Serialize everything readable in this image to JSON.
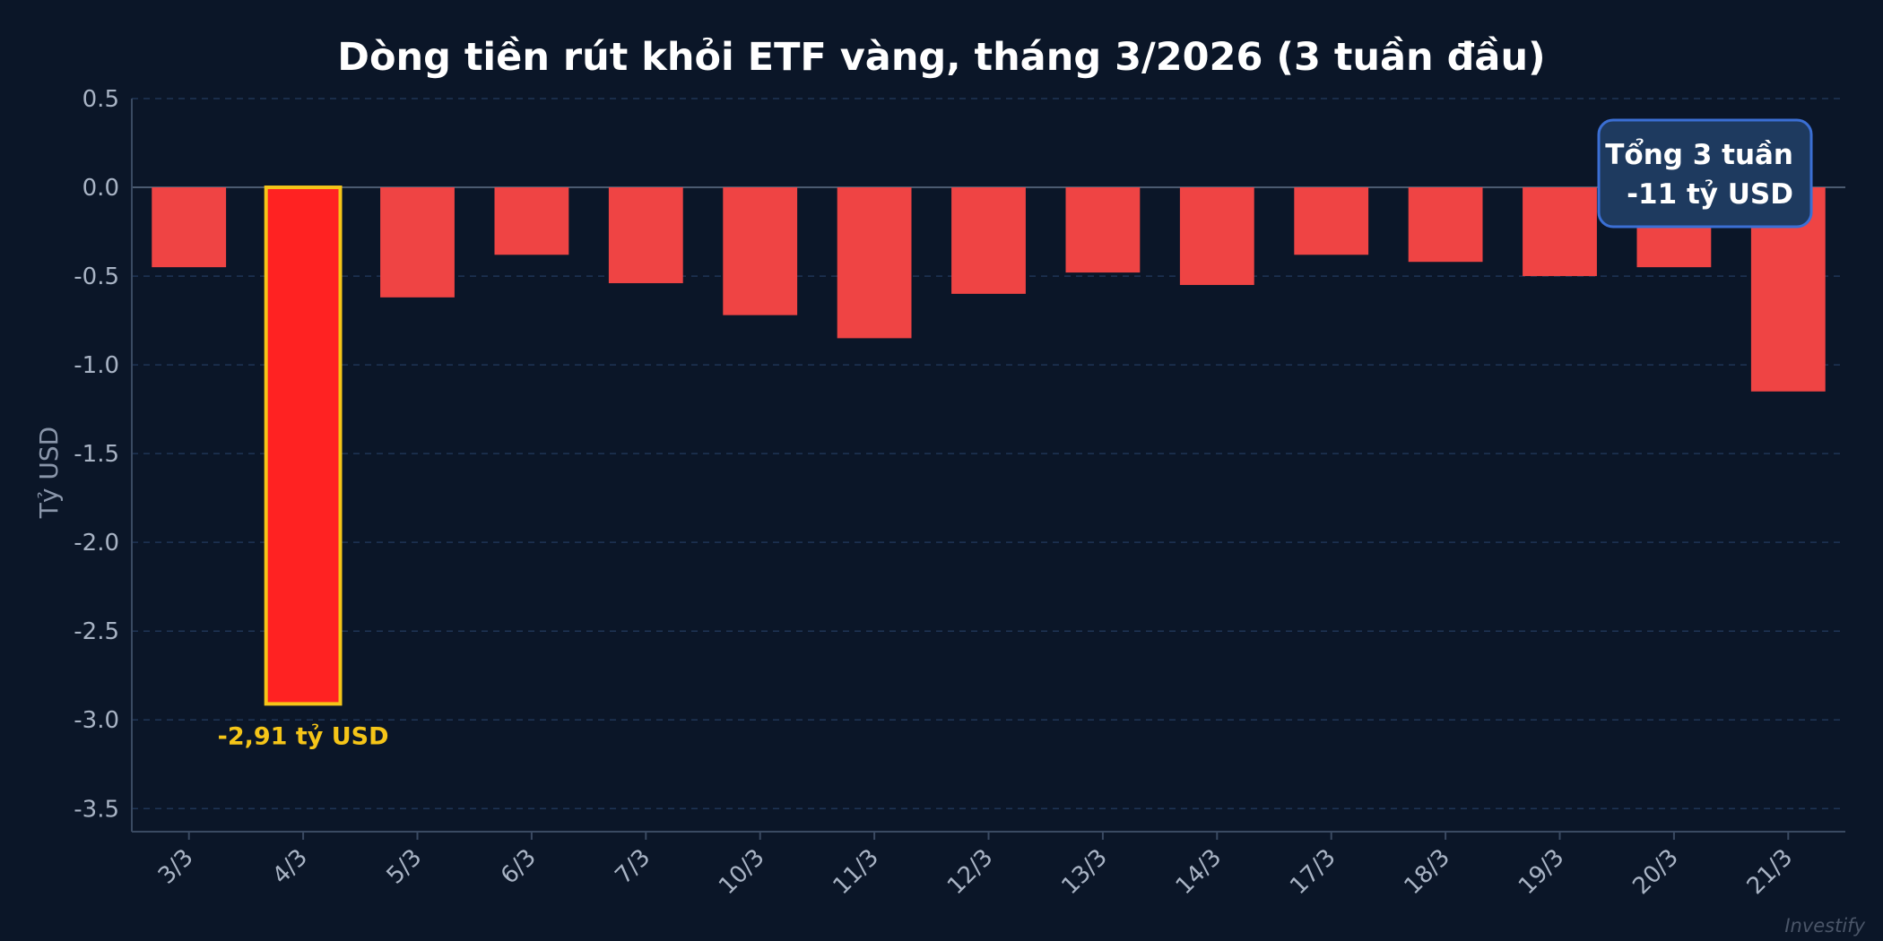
{
  "chart_data": {
    "type": "bar",
    "title": "Dòng tiền rút khỏi ETF vàng, tháng 3/2026 (3 tuần đầu)",
    "xlabel": "",
    "ylabel": "Tỷ USD",
    "categories": [
      "3/3",
      "4/3",
      "5/3",
      "6/3",
      "7/3",
      "10/3",
      "11/3",
      "12/3",
      "13/3",
      "14/3",
      "17/3",
      "18/3",
      "19/3",
      "20/3",
      "21/3"
    ],
    "values": [
      -0.45,
      -2.91,
      -0.62,
      -0.38,
      -0.54,
      -0.72,
      -0.85,
      -0.6,
      -0.48,
      -0.55,
      -0.38,
      -0.42,
      -0.5,
      -0.45,
      -1.15
    ],
    "ylim": [
      -3.63,
      0.5
    ],
    "yticks": [
      0.5,
      0.0,
      -0.5,
      -1.0,
      -1.5,
      -2.0,
      -2.5,
      -3.0,
      -3.5
    ],
    "ytick_labels": [
      "0.5",
      "0.0",
      "-0.5",
      "-1.0",
      "-1.5",
      "-2.0",
      "-2.5",
      "-3.0",
      "-3.5"
    ],
    "grid": true,
    "highlight": {
      "category": "4/3",
      "label": "-2,91 tỷ USD"
    },
    "callout": {
      "position": "top-right",
      "line1": "Tổng 3 tuần",
      "line2": "-11 tỷ USD"
    },
    "watermark": "Investify"
  },
  "colors": {
    "background": "#0b1628",
    "bar": "#ef4444",
    "highlight_bar": "#ff2222",
    "highlight_border": "#f5c518",
    "highlight_label": "#f5c518",
    "grid": "#1f3556",
    "zero_line": "#4b5a70",
    "axis": "#3a4a62",
    "callout_bg": "#1e3a5f",
    "callout_border": "#3b6fd4"
  }
}
